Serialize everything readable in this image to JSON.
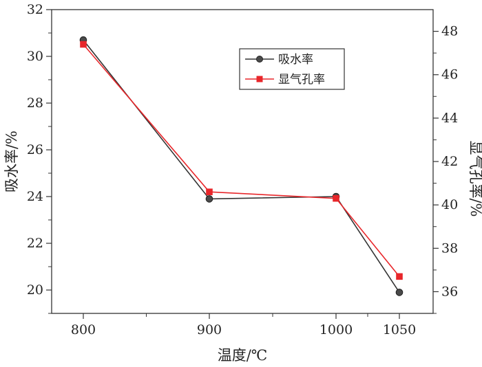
{
  "chart_data": {
    "type": "line",
    "x": [
      800,
      900,
      1000,
      1050
    ],
    "xticks": [
      "800",
      "900",
      "1000",
      "1050"
    ],
    "xlabel": "温度/℃",
    "ylabel_left": "吸水率/%",
    "ylabel_right": "显气孔率/%",
    "ylim_left": [
      19,
      32
    ],
    "ylim_right": [
      35,
      49
    ],
    "yticks_left": [
      "20",
      "22",
      "24",
      "26",
      "28",
      "30",
      "32"
    ],
    "yticks_right": [
      "36",
      "38",
      "40",
      "42",
      "44",
      "46",
      "48"
    ],
    "grid": false,
    "legend_position": "top-right",
    "series": [
      {
        "name": "吸水率",
        "axis": "left",
        "color": "#333333",
        "marker": "circle",
        "values": [
          30.7,
          23.9,
          24.0,
          19.9
        ]
      },
      {
        "name": "显气孔率",
        "axis": "right",
        "color": "#e8262a",
        "marker": "square",
        "values": [
          47.4,
          40.6,
          40.3,
          36.7
        ]
      }
    ]
  }
}
